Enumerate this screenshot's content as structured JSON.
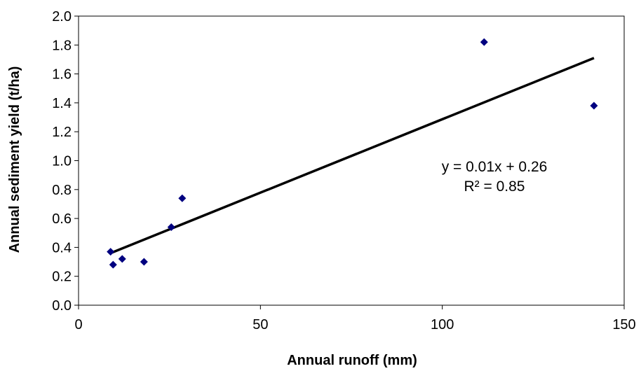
{
  "chart_data": {
    "type": "scatter",
    "title": "",
    "xlabel": "Annual runoff (mm)",
    "ylabel": "Annual sediment yield (t/ha)",
    "xlim": [
      0,
      150
    ],
    "ylim": [
      0,
      2.0
    ],
    "xticks": [
      0,
      50,
      100,
      150
    ],
    "yticks": [
      0.0,
      0.2,
      0.4,
      0.6,
      0.8,
      1.0,
      1.2,
      1.4,
      1.6,
      1.8,
      2.0
    ],
    "xtick_labels": [
      "0",
      "50",
      "100",
      "150"
    ],
    "ytick_labels": [
      "0.0",
      "0.2",
      "0.4",
      "0.6",
      "0.8",
      "1.0",
      "1.2",
      "1.4",
      "1.6",
      "1.8",
      "2.0"
    ],
    "grid": false,
    "legend": "none",
    "marker": "diamond",
    "marker_color": "#000080",
    "points": [
      {
        "x": 8.8,
        "y": 0.37
      },
      {
        "x": 9.5,
        "y": 0.28
      },
      {
        "x": 12,
        "y": 0.32
      },
      {
        "x": 18,
        "y": 0.3
      },
      {
        "x": 25.5,
        "y": 0.54
      },
      {
        "x": 28.5,
        "y": 0.74
      },
      {
        "x": 111.5,
        "y": 1.82
      },
      {
        "x": 141.7,
        "y": 1.38
      }
    ],
    "trendline": {
      "x": [
        8.8,
        141.7
      ],
      "y": [
        0.36,
        1.71
      ],
      "color": "#000000"
    },
    "annotations": {
      "equation": "y = 0.01x + 0.26",
      "r_squared": "R² = 0.85"
    }
  }
}
